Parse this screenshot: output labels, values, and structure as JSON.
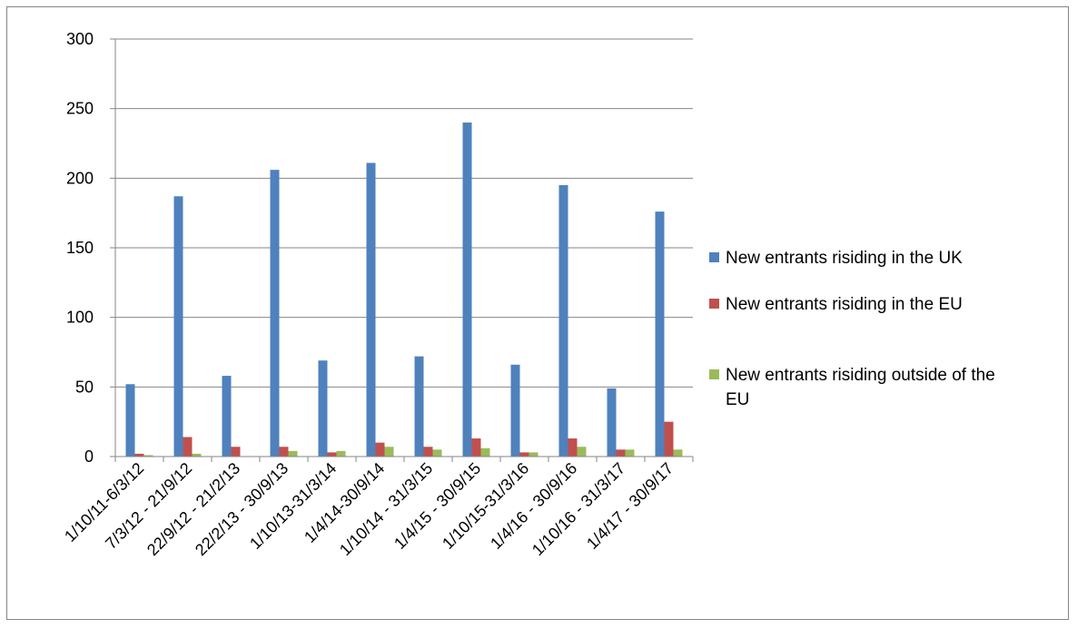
{
  "chart_data": {
    "type": "bar",
    "title": "",
    "xlabel": "",
    "ylabel": "",
    "ylim": [
      0,
      300
    ],
    "yticks": [
      0,
      50,
      100,
      150,
      200,
      250,
      300
    ],
    "grid": true,
    "legend_position": "right",
    "categories": [
      "1/10/11-6/3/12",
      "7/3/12 - 21/9/12",
      "22/9/12 - 21/2/13",
      "22/2/13 - 30/9/13",
      "1/10/13-31/3/14",
      "1/4/14-30/9/14",
      "1/10/14 - 31/3/15",
      "1/4/15 - 30/9/15",
      "1/10/15-31/3/16",
      "1/4/16 - 30/9/16",
      "1/10/16 - 31/3/17",
      "1/4/17 - 30/9/17"
    ],
    "series": [
      {
        "name": "New entrants risiding in the UK",
        "color": "#4F81BD",
        "values": [
          52,
          187,
          58,
          206,
          69,
          211,
          72,
          240,
          66,
          195,
          49,
          176
        ]
      },
      {
        "name": "New entrants risiding in the EU",
        "color": "#C0504D",
        "values": [
          2,
          14,
          7,
          7,
          3,
          10,
          7,
          13,
          3,
          13,
          5,
          25
        ]
      },
      {
        "name": "New entrants risiding outside of the EU",
        "color": "#9BBB59",
        "values": [
          1,
          2,
          0,
          4,
          4,
          7,
          5,
          6,
          3,
          7,
          5,
          5
        ]
      }
    ]
  }
}
